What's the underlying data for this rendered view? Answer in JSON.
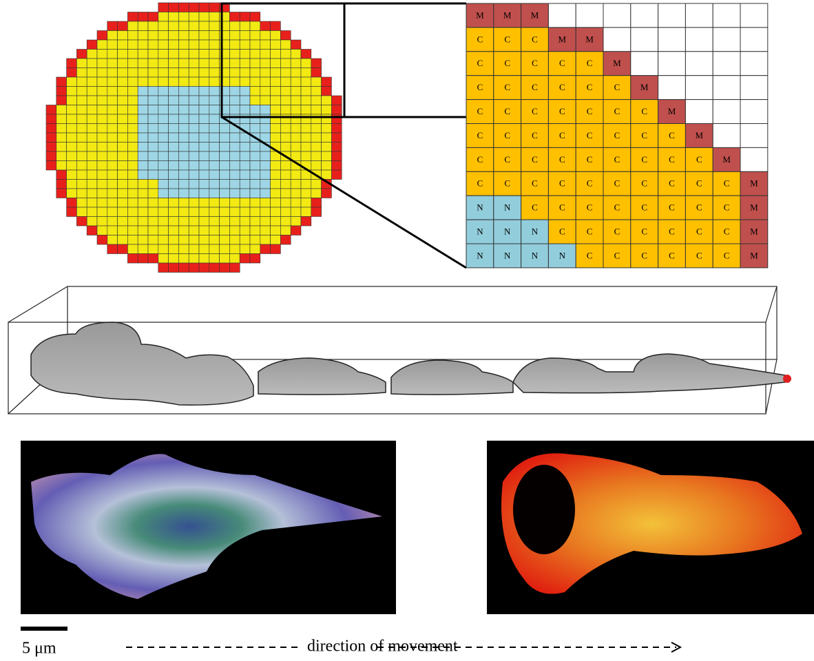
{
  "grid": {
    "rows": [
      [
        "M",
        "M",
        "M"
      ],
      [
        "C",
        "C",
        "C",
        "M",
        "M"
      ],
      [
        "C",
        "C",
        "C",
        "C",
        "C",
        "M"
      ],
      [
        "C",
        "C",
        "C",
        "C",
        "C",
        "C",
        "M"
      ],
      [
        "C",
        "C",
        "C",
        "C",
        "C",
        "C",
        "C",
        "M"
      ],
      [
        "C",
        "C",
        "C",
        "C",
        "C",
        "C",
        "C",
        "C",
        "M"
      ],
      [
        "C",
        "C",
        "C",
        "C",
        "C",
        "C",
        "C",
        "C",
        "C",
        "M"
      ],
      [
        "C",
        "C",
        "C",
        "C",
        "C",
        "C",
        "C",
        "C",
        "C",
        "C",
        "M"
      ],
      [
        "N",
        "N",
        "C",
        "C",
        "C",
        "C",
        "C",
        "C",
        "C",
        "C",
        "M"
      ],
      [
        "N",
        "N",
        "N",
        "C",
        "C",
        "C",
        "C",
        "C",
        "C",
        "C",
        "M"
      ],
      [
        "N",
        "N",
        "N",
        "N",
        "C",
        "C",
        "C",
        "C",
        "C",
        "C",
        "M"
      ]
    ]
  },
  "scale_bar": {
    "label": "5 μm"
  },
  "caption": "direction of movement"
}
